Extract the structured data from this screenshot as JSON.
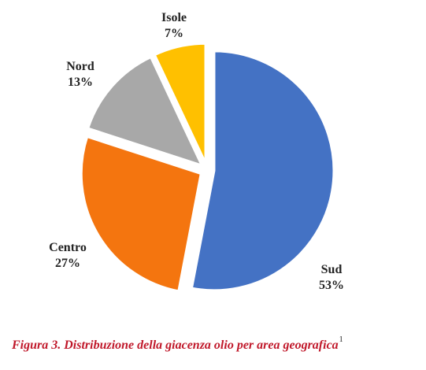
{
  "chart_data": {
    "type": "pie",
    "slices": [
      {
        "label": "Sud",
        "value": 53,
        "value_label": "53%",
        "color": "#4472c4"
      },
      {
        "label": "Centro",
        "value": 27,
        "value_label": "27%",
        "color": "#f4750f"
      },
      {
        "label": "Nord",
        "value": 13,
        "value_label": "13%",
        "color": "#a8a8a8"
      },
      {
        "label": "Isole",
        "value": 7,
        "value_label": "7%",
        "color": "#ffc000"
      }
    ],
    "start": "12 o'clock",
    "direction": "clockwise",
    "exploded": true,
    "legend": "none"
  },
  "caption": {
    "text": "Figura 3. Distribuzione della giacenza olio per area geografica",
    "footnote_marker": "1"
  }
}
